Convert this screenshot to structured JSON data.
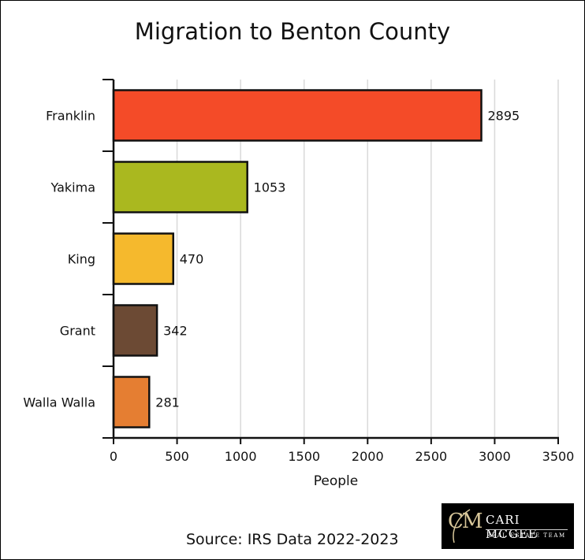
{
  "chart_data": {
    "type": "bar",
    "orientation": "horizontal",
    "title": "Migration to Benton County",
    "xlabel": "People",
    "ylabel": "",
    "categories": [
      "Franklin",
      "Yakima",
      "King",
      "Grant",
      "Walla Walla"
    ],
    "values": [
      2895,
      1053,
      470,
      342,
      281
    ],
    "colors": [
      "#f44b28",
      "#aab81f",
      "#f5b92d",
      "#6c4a34",
      "#e57e32"
    ],
    "xlim": [
      0,
      3500
    ],
    "xticks": [
      0,
      500,
      1000,
      1500,
      2000,
      2500,
      3000,
      3500
    ],
    "xtick_labels": [
      "0",
      "500",
      "1000",
      "1500",
      "2000",
      "2500",
      "3000",
      "3500"
    ],
    "grid": "vertical",
    "data_labels": true
  },
  "source_text": "Source: IRS Data 2022-2023",
  "logo": {
    "monogram": "CM",
    "name": "CARI MCGEE",
    "tagline": "REAL ESTATE TEAM"
  }
}
